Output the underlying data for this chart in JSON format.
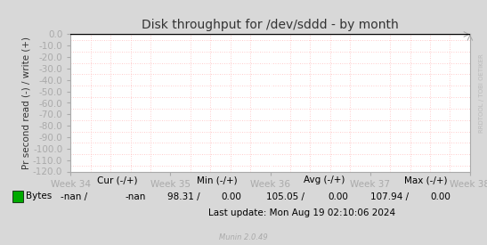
{
  "title": "Disk throughput for /dev/sddd - by month",
  "ylabel": "Pr second read (-) / write (+)",
  "ylim": [
    -120,
    0
  ],
  "yticks": [
    0,
    -10,
    -20,
    -30,
    -40,
    -50,
    -60,
    -70,
    -80,
    -90,
    -100,
    -110,
    -120
  ],
  "ytick_labels": [
    "0.0",
    "-10.0",
    "-20.0",
    "-30.0",
    "-40.0",
    "-50.0",
    "-60.0",
    "-70.0",
    "-80.0",
    "-90.0",
    "-100.0",
    "-110.0",
    "-120.0"
  ],
  "xtick_labels": [
    "Week 34",
    "Week 35",
    "Week 36",
    "Week 37",
    "Week 38"
  ],
  "xtick_positions": [
    0.0,
    0.25,
    0.5,
    0.75,
    1.0
  ],
  "bg_color": "#d8d8d8",
  "plot_bg_color": "#ffffff",
  "grid_color_major": "#ffffff",
  "grid_color_minor": "#ffbbbb",
  "title_color": "#333333",
  "legend_label": "Bytes",
  "legend_color": "#00aa00",
  "munin_text": "Munin 2.0.49",
  "right_label": "RRDTOOL / TOBI OETIKER",
  "watermark_color": "#bbbbbb",
  "border_color": "#aaaaaa",
  "tick_color": "#333333",
  "spine_color": "#aaaaaa",
  "arrow_color": "#aaaaaa",
  "stats_header1": "Cur (-/+)",
  "stats_header2": "Min (-/+)",
  "stats_header3": "Avg (-/+)",
  "stats_header4": "Max (-/+)",
  "stats_val1a": "-nan /",
  "stats_val1b": "-nan",
  "stats_val2a": "98.31 /",
  "stats_val2b": "0.00",
  "stats_val3a": "105.05 /",
  "stats_val3b": "0.00",
  "stats_val4a": "107.94 /",
  "stats_val4b": "0.00",
  "last_update": "Last update: Mon Aug 19 02:10:06 2024"
}
